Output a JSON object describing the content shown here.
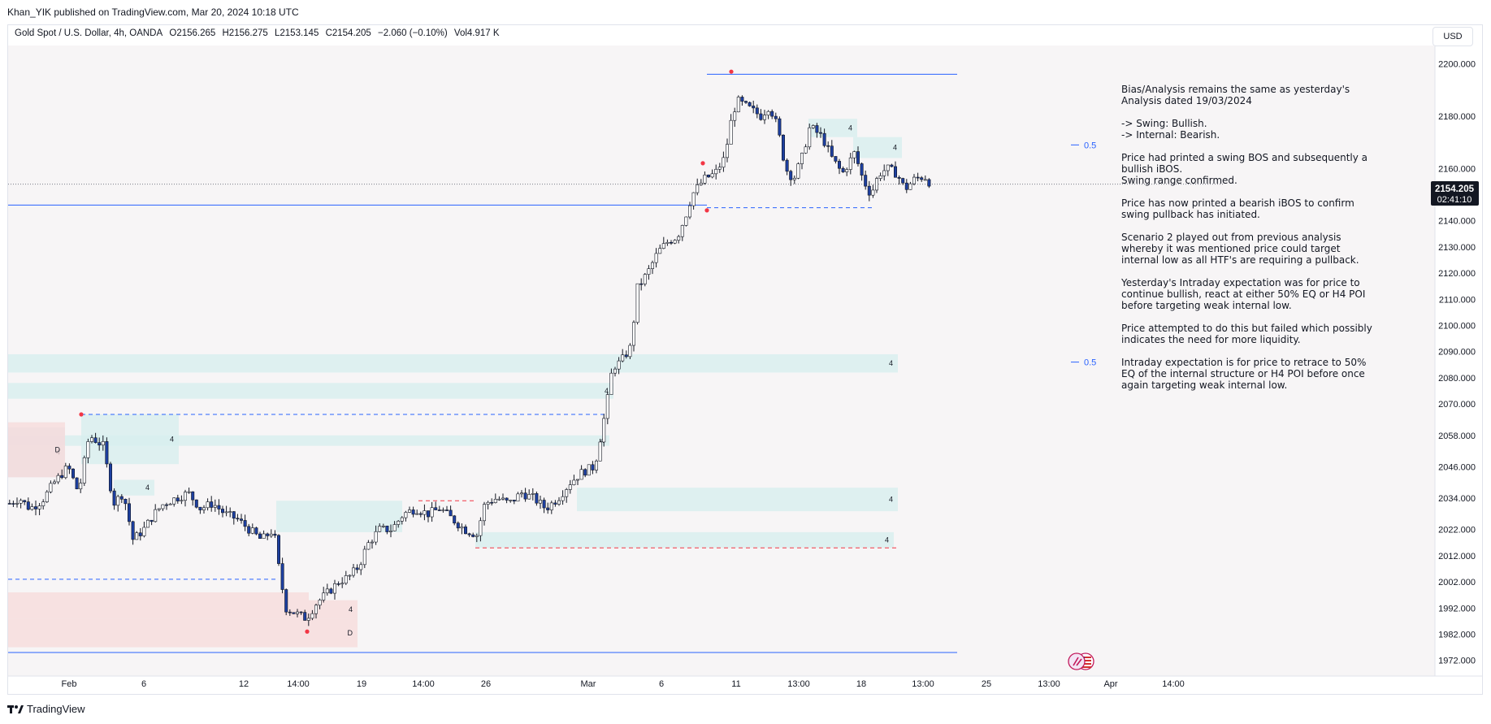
{
  "header": {
    "published": "Khan_YIK published on TradingView.com, Mar 20, 2024 10:18 UTC"
  },
  "symbol": {
    "name": "Gold Spot / U.S. Dollar, 4h, OANDA",
    "open": "O2156.265",
    "high": "H2156.275",
    "low": "L2153.145",
    "close": "C2154.205",
    "change": "−2.060 (−0.10%)",
    "volume": "Vol4.917 K"
  },
  "currency_button": "USD",
  "price_tag": {
    "price": "2154.205",
    "countdown": "02:41:10"
  },
  "footer": {
    "brand": "TradingView"
  },
  "colors": {
    "bull": "#ffffff",
    "bear": "#1d3fa0",
    "wick": "#131722",
    "supply": "#f6dcdc",
    "demand": "#d7efef",
    "line_blue": "#2962ff",
    "line_red": "#f23645"
  },
  "chart_data": {
    "type": "candlestick",
    "symbol": "XAUUSD",
    "timeframe": "4h",
    "ylim": [
      1966,
      2207
    ],
    "y_ticks": [
      "2200.000",
      "2180.000",
      "2160.000",
      "2140.000",
      "2130.000",
      "2120.000",
      "2110.000",
      "2100.000",
      "2090.000",
      "2080.000",
      "2070.000",
      "2058.000",
      "2046.000",
      "2034.000",
      "2022.000",
      "2012.000",
      "2002.000",
      "1992.000",
      "1982.000",
      "1972.000"
    ],
    "x_ticks": [
      "Feb",
      "6",
      "12",
      "14:00",
      "19",
      "14:00",
      "26",
      "Mar",
      "6",
      "11",
      "13:00",
      "18",
      "13:00",
      "25",
      "13:00",
      "Apr",
      "14:00"
    ],
    "path": [
      [
        0,
        2032
      ],
      [
        12,
        2034
      ],
      [
        25,
        2030
      ],
      [
        40,
        2033
      ],
      [
        55,
        2040
      ],
      [
        72,
        2046
      ],
      [
        85,
        2036
      ],
      [
        98,
        2058
      ],
      [
        115,
        2054
      ],
      [
        128,
        2032
      ],
      [
        140,
        2036
      ],
      [
        152,
        2018
      ],
      [
        165,
        2022
      ],
      [
        178,
        2028
      ],
      [
        190,
        2032
      ],
      [
        205,
        2034
      ],
      [
        220,
        2036
      ],
      [
        235,
        2030
      ],
      [
        250,
        2032
      ],
      [
        265,
        2028
      ],
      [
        280,
        2026
      ],
      [
        295,
        2022
      ],
      [
        310,
        2018
      ],
      [
        325,
        2022
      ],
      [
        332,
        2006
      ],
      [
        340,
        1992
      ],
      [
        352,
        1990
      ],
      [
        365,
        1988
      ],
      [
        378,
        1994
      ],
      [
        392,
        1998
      ],
      [
        405,
        2002
      ],
      [
        418,
        2004
      ],
      [
        430,
        2008
      ],
      [
        440,
        2016
      ],
      [
        455,
        2022
      ],
      [
        470,
        2022
      ],
      [
        485,
        2028
      ],
      [
        500,
        2030
      ],
      [
        515,
        2028
      ],
      [
        530,
        2030
      ],
      [
        545,
        2026
      ],
      [
        560,
        2022
      ],
      [
        575,
        2020
      ],
      [
        585,
        2032
      ],
      [
        600,
        2034
      ],
      [
        615,
        2032
      ],
      [
        630,
        2036
      ],
      [
        645,
        2034
      ],
      [
        660,
        2030
      ],
      [
        675,
        2034
      ],
      [
        690,
        2040
      ],
      [
        705,
        2044
      ],
      [
        720,
        2046
      ],
      [
        735,
        2070
      ],
      [
        742,
        2084
      ],
      [
        752,
        2086
      ],
      [
        765,
        2092
      ],
      [
        772,
        2114
      ],
      [
        785,
        2120
      ],
      [
        798,
        2128
      ],
      [
        810,
        2132
      ],
      [
        822,
        2134
      ],
      [
        832,
        2142
      ],
      [
        840,
        2150
      ],
      [
        855,
        2156
      ],
      [
        868,
        2158
      ],
      [
        880,
        2164
      ],
      [
        888,
        2178
      ],
      [
        895,
        2186
      ],
      [
        905,
        2184
      ],
      [
        915,
        2182
      ],
      [
        925,
        2180
      ],
      [
        935,
        2184
      ],
      [
        945,
        2176
      ],
      [
        955,
        2160
      ],
      [
        965,
        2156
      ],
      [
        975,
        2164
      ],
      [
        985,
        2176
      ],
      [
        1000,
        2172
      ],
      [
        1012,
        2164
      ],
      [
        1025,
        2158
      ],
      [
        1040,
        2166
      ],
      [
        1050,
        2156
      ],
      [
        1060,
        2150
      ],
      [
        1070,
        2158
      ],
      [
        1080,
        2160
      ],
      [
        1092,
        2158
      ],
      [
        1102,
        2152
      ],
      [
        1114,
        2156
      ],
      [
        1126,
        2157
      ],
      [
        1134,
        2154
      ]
    ],
    "zones": [
      {
        "type": "demand",
        "x0": 0,
        "x1": 1095,
        "y0": 2082,
        "y1": 2089,
        "label": "4"
      },
      {
        "type": "demand",
        "x0": 0,
        "x1": 745,
        "y0": 2072,
        "y1": 2078,
        "label": "4"
      },
      {
        "type": "demand",
        "x0": 0,
        "x1": 740,
        "y0": 2054,
        "y1": 2058,
        "label": "4"
      },
      {
        "type": "demand",
        "x0": 700,
        "x1": 1095,
        "y0": 2029,
        "y1": 2038,
        "label": "4"
      },
      {
        "type": "demand",
        "x0": 575,
        "x1": 1090,
        "y0": 2015,
        "y1": 2021,
        "label": "4"
      },
      {
        "type": "demand",
        "x0": 330,
        "x1": 485,
        "y0": 2021,
        "y1": 2033,
        "label": ""
      },
      {
        "type": "demand",
        "x0": 90,
        "x1": 210,
        "y0": 2047,
        "y1": 2066,
        "label": "4"
      },
      {
        "type": "demand",
        "x0": 130,
        "x1": 180,
        "y0": 2035,
        "y1": 2041,
        "label": "4"
      },
      {
        "type": "demand",
        "x0": 1040,
        "x1": 1100,
        "y0": 2164,
        "y1": 2172,
        "label": "4"
      },
      {
        "type": "demand",
        "x0": 985,
        "x1": 1045,
        "y0": 2172,
        "y1": 2179,
        "label": "4"
      },
      {
        "type": "neutral",
        "x0": 0,
        "x1": 70,
        "y0": 2042,
        "y1": 2061,
        "label": "4"
      },
      {
        "type": "supply",
        "x0": 0,
        "x1": 430,
        "y0": 1977,
        "y1": 1988,
        "label": "D"
      },
      {
        "type": "supply",
        "x0": 0,
        "x1": 370,
        "y0": 1988,
        "y1": 1998,
        "label": ""
      },
      {
        "type": "supply",
        "x0": 370,
        "x1": 430,
        "y0": 1988,
        "y1": 1995,
        "label": "4"
      },
      {
        "type": "supply",
        "x0": 0,
        "x1": 70,
        "y0": 2042,
        "y1": 2063,
        "label": "D"
      }
    ],
    "lines": [
      {
        "color": "blue",
        "style": "solid",
        "x0": 0,
        "x1": 860,
        "y": 2146
      },
      {
        "color": "blue",
        "style": "solid",
        "x0": 860,
        "x1": 1168,
        "y": 2196
      },
      {
        "color": "blue",
        "style": "solid",
        "x0": 0,
        "x1": 1168,
        "y": 1975
      },
      {
        "color": "blue",
        "style": "dashed",
        "x0": 90,
        "x1": 735,
        "y": 2066
      },
      {
        "color": "blue",
        "style": "dashed",
        "x0": 860,
        "x1": 1065,
        "y": 2145
      },
      {
        "color": "blue",
        "style": "dashed",
        "x0": 0,
        "x1": 330,
        "y": 2003
      },
      {
        "color": "red",
        "style": "dashed",
        "x0": 575,
        "x1": 1095,
        "y": 2015
      },
      {
        "color": "red",
        "style": "dashed",
        "x0": 505,
        "x1": 575,
        "y": 2033
      },
      {
        "color": "grey",
        "style": "dotted",
        "x0": 0,
        "x1": 1496,
        "y": 2154
      }
    ],
    "levels": [
      {
        "label": "0.5",
        "y": 2169
      },
      {
        "label": "0.5",
        "y": 2086
      }
    ],
    "marks": [
      {
        "x": 890,
        "y": 2197
      },
      {
        "x": 855,
        "y": 2162
      },
      {
        "x": 860,
        "y": 2144
      },
      {
        "x": 90,
        "y": 2066
      },
      {
        "x": 368,
        "y": 1983
      }
    ],
    "annotation": [
      "Bias/Analysis remains the same as yesterday's",
      "Analysis dated 19/03/2024",
      "",
      "-> Swing:  Bullish.",
      "-> Internal:  Bearish.",
      "",
      "Price had printed a swing BOS and subsequently a",
      "bullish iBOS.",
      "Swing range confirmed.",
      "",
      "Price has now printed a bearish iBOS to confirm",
      "swing pullback has initiated.",
      "",
      "Scenario 2 played out from previous analysis",
      "whereby it was mentioned price could target",
      "internal low as all HTF's are requiring a pullback.",
      "",
      "Yesterday's Intraday expectation was for price to",
      "continue bullish, react at either 50% EQ or H4 POI",
      "before targeting weak internal low.",
      "",
      "Price attempted to do this but failed which possibly",
      "indicates the need for more liquidity.",
      "",
      "Intraday expectation is for price to retrace to 50%",
      "EQ of the internal structure or H4 POI before once",
      "again targeting weak internal low."
    ]
  }
}
